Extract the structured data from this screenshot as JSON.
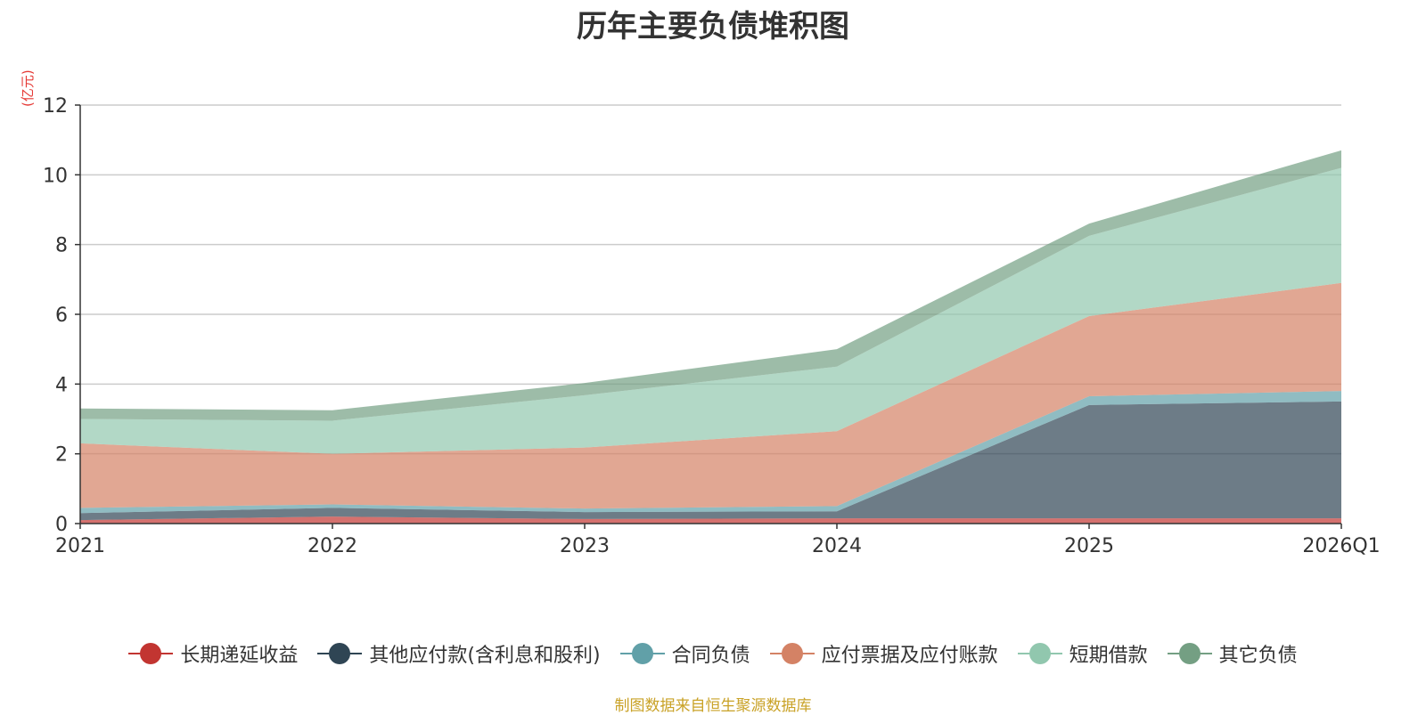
{
  "title": "历年主要负债堆积图",
  "unit": "(亿元)",
  "source": "制图数据来自恒生聚源数据库",
  "chart_data": {
    "type": "area",
    "stacked": true,
    "title": "历年主要负债堆积图",
    "ylabel": "(亿元)",
    "categories": [
      "2021",
      "2022",
      "2023",
      "2024",
      "2025",
      "2026Q1"
    ],
    "ylim": [
      0,
      12
    ],
    "yticks": [
      0,
      2,
      4,
      6,
      8,
      10,
      12
    ],
    "grid": true,
    "legend_position": "bottom",
    "series": [
      {
        "name": "长期递延收益",
        "color": "#c23531",
        "values": [
          0.1,
          0.2,
          0.13,
          0.15,
          0.15,
          0.15
        ]
      },
      {
        "name": "其他应付款(含利息和股利)",
        "color": "#2f4554",
        "values": [
          0.2,
          0.25,
          0.2,
          0.2,
          3.25,
          3.35
        ]
      },
      {
        "name": "合同负债",
        "color": "#61a0a8",
        "values": [
          0.15,
          0.1,
          0.1,
          0.15,
          0.25,
          0.3
        ]
      },
      {
        "name": "应付票据及应付账款",
        "color": "#d48265",
        "values": [
          1.85,
          1.45,
          1.75,
          2.15,
          2.3,
          3.1
        ]
      },
      {
        "name": "短期借款",
        "color": "#91c7ae",
        "values": [
          0.7,
          0.95,
          1.5,
          1.85,
          2.3,
          3.3
        ]
      },
      {
        "name": "其它负债",
        "color": "#749f83",
        "values": [
          0.3,
          0.3,
          0.35,
          0.5,
          0.35,
          0.5
        ]
      }
    ]
  }
}
